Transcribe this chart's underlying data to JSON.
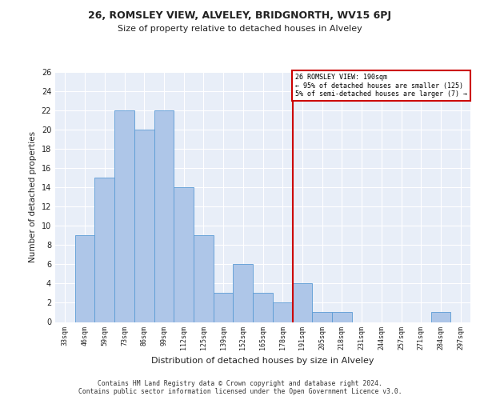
{
  "title1": "26, ROMSLEY VIEW, ALVELEY, BRIDGNORTH, WV15 6PJ",
  "title2": "Size of property relative to detached houses in Alveley",
  "xlabel": "Distribution of detached houses by size in Alveley",
  "ylabel": "Number of detached properties",
  "categories": [
    "33sqm",
    "46sqm",
    "59sqm",
    "73sqm",
    "86sqm",
    "99sqm",
    "112sqm",
    "125sqm",
    "139sqm",
    "152sqm",
    "165sqm",
    "178sqm",
    "191sqm",
    "205sqm",
    "218sqm",
    "231sqm",
    "244sqm",
    "257sqm",
    "271sqm",
    "284sqm",
    "297sqm"
  ],
  "values": [
    0,
    9,
    15,
    22,
    20,
    22,
    14,
    9,
    3,
    6,
    3,
    2,
    4,
    1,
    1,
    0,
    0,
    0,
    0,
    1,
    0
  ],
  "bar_color": "#aec6e8",
  "bar_edge_color": "#5b9bd5",
  "vline_index": 12,
  "vline_color": "#cc0000",
  "annotation_box_text_line1": "26 ROMSLEY VIEW: 190sqm",
  "annotation_box_text_line2": "← 95% of detached houses are smaller (125)",
  "annotation_box_text_line3": "5% of semi-detached houses are larger (7) →",
  "annotation_box_color": "#cc0000",
  "ylim": [
    0,
    26
  ],
  "yticks": [
    0,
    2,
    4,
    6,
    8,
    10,
    12,
    14,
    16,
    18,
    20,
    22,
    24,
    26
  ],
  "background_color": "#e8eef8",
  "grid_color": "#ffffff",
  "footer_line1": "Contains HM Land Registry data © Crown copyright and database right 2024.",
  "footer_line2": "Contains public sector information licensed under the Open Government Licence v3.0."
}
